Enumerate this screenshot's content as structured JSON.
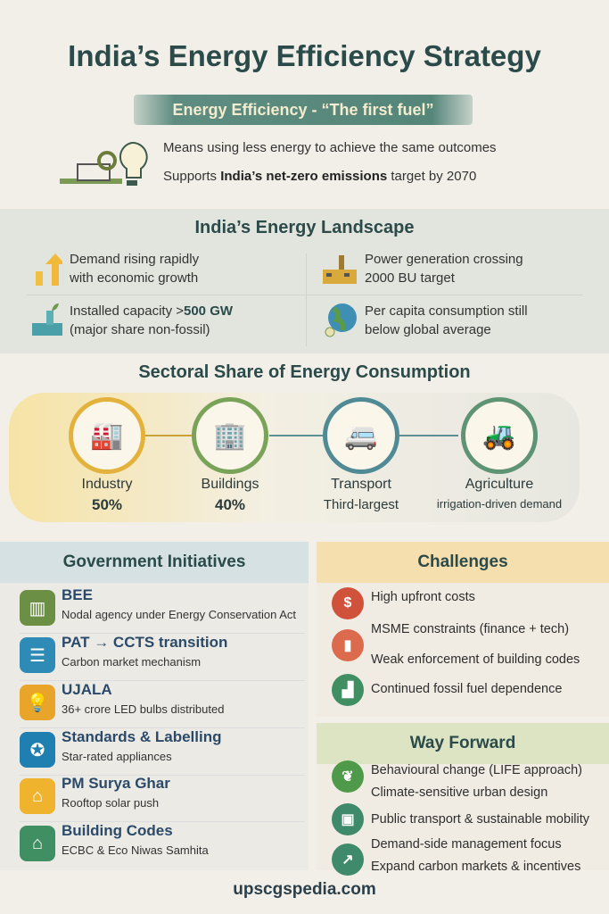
{
  "title": "India’s Energy Efficiency Strategy",
  "banner": "Energy Efficiency - “The first fuel”",
  "intro": {
    "line1": "Means using less energy to achieve the same outcomes",
    "line2_pre": "Supports ",
    "line2_bold": "India’s net-zero emissions",
    "line2_post": " target by 2070"
  },
  "landscape": {
    "title": "India’s Energy Landscape",
    "items": [
      {
        "line1": "Demand rising rapidly",
        "line2": "with economic growth",
        "icon": "rising-arrow-icon"
      },
      {
        "line1": "Power generation crossing",
        "line2": "2000 BU target",
        "icon": "factory-icon"
      },
      {
        "line1_pre": "Installed capacity >",
        "line1_bold": "500 GW",
        "line2": "(major share non-fossil)",
        "icon": "green-plant-icon"
      },
      {
        "line1": "Per capita consumption still",
        "line2": "below global average",
        "icon": "globe-icon"
      }
    ]
  },
  "sectoral": {
    "title": "Sectoral Share of Energy Consumption",
    "sectors": [
      {
        "name": "Industry",
        "value": "50%",
        "color": "#e3b23c"
      },
      {
        "name": "Buildings",
        "value": "40%",
        "color": "#7aa35a"
      },
      {
        "name": "Transport",
        "value": "Third-largest",
        "color": "#4f8a95"
      },
      {
        "name": "Agriculture",
        "value": "irrigation-driven demand",
        "color": "#5e9474"
      }
    ]
  },
  "initiatives": {
    "title": "Government Initiatives",
    "items": [
      {
        "title": "BEE",
        "desc": "Nodal agency under  Energy Conservation Act",
        "color": "#6b8f45"
      },
      {
        "title": "PAT → CCTS transition",
        "desc": "Carbon market mechanism",
        "color": "#2e8bb5"
      },
      {
        "title": "UJALA",
        "desc": "36+ crore LED bulbs distributed",
        "color": "#e9a42a"
      },
      {
        "title": "Standards & Labelling",
        "desc": "Star-rated appliances",
        "color": "#1f7fb0"
      },
      {
        "title": "PM Surya Ghar",
        "desc": "Rooftop solar push",
        "color": "#efb32e"
      },
      {
        "title": "Building Codes",
        "desc": "ECBC & Eco Niwas Samhita",
        "color": "#3f8f62"
      }
    ]
  },
  "challenges": {
    "title": "Challenges",
    "items": [
      "High upfront costs",
      "MSME constraints (finance + tech)",
      "Weak enforcement of building codes",
      "Continued fossil fuel dependence"
    ]
  },
  "way_forward": {
    "title": "Way Forward",
    "items": [
      "Behavioural change (LIFE approach)",
      "Climate-sensitive urban design",
      "Public transport & sustainable mobility",
      "Demand-side management focus",
      "Expand carbon markets & incentives"
    ]
  },
  "footer": "upscgspedia.com"
}
